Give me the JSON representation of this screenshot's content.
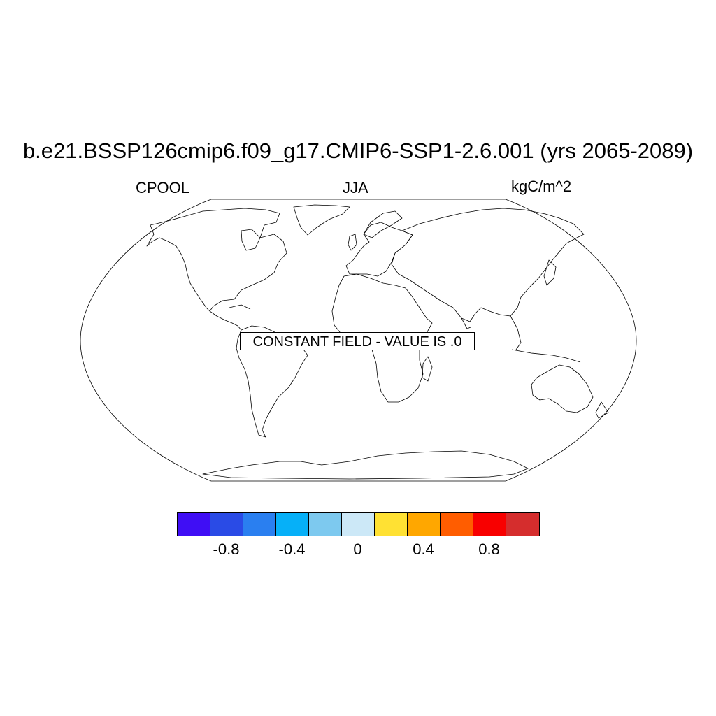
{
  "title": "b.e21.BSSP126cmip6.f09_g17.CMIP6-SSP1-2.6.001 (yrs 2065-2089)",
  "left_label": "CPOOL",
  "center_label": "JJA",
  "right_label": "kgC/m^2",
  "notice": "CONSTANT FIELD - VALUE IS .0",
  "colorbar": {
    "colors": [
      "#3f0ef5",
      "#2a4be6",
      "#2a7ff0",
      "#06b0f8",
      "#7dc9ef",
      "#cce8f7",
      "#ffe133",
      "#ffa700",
      "#ff5d00",
      "#f80000",
      "#d52d2d"
    ],
    "labels": [
      "-0.8",
      "-0.4",
      "0",
      "0.4",
      "0.8"
    ],
    "label_values": [
      -0.8,
      -0.4,
      0,
      0.4,
      0.8
    ],
    "range": [
      -1.1,
      1.1
    ]
  }
}
